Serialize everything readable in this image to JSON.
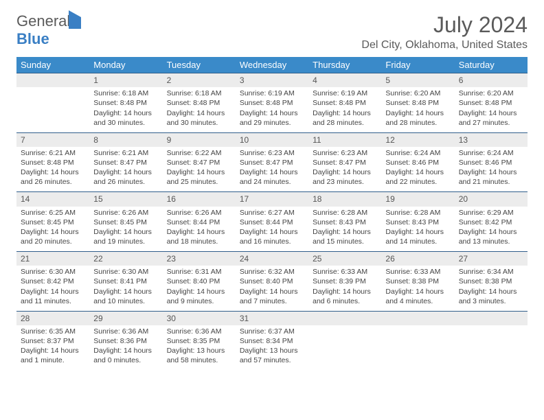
{
  "logo": {
    "line1": "General",
    "line2": "Blue"
  },
  "title": "July 2024",
  "location": "Del City, Oklahoma, United States",
  "colors": {
    "header_bg": "#3a8ac9",
    "header_text": "#ffffff",
    "daynum_bg": "#ececec",
    "row_border": "#2f5d8a",
    "body_text": "#444444",
    "logo_blue": "#3a7fc4",
    "logo_gray": "#5a5a5a"
  },
  "weekdays": [
    "Sunday",
    "Monday",
    "Tuesday",
    "Wednesday",
    "Thursday",
    "Friday",
    "Saturday"
  ],
  "weeks": [
    [
      null,
      {
        "n": "1",
        "sr": "Sunrise: 6:18 AM",
        "ss": "Sunset: 8:48 PM",
        "d1": "Daylight: 14 hours",
        "d2": "and 30 minutes."
      },
      {
        "n": "2",
        "sr": "Sunrise: 6:18 AM",
        "ss": "Sunset: 8:48 PM",
        "d1": "Daylight: 14 hours",
        "d2": "and 30 minutes."
      },
      {
        "n": "3",
        "sr": "Sunrise: 6:19 AM",
        "ss": "Sunset: 8:48 PM",
        "d1": "Daylight: 14 hours",
        "d2": "and 29 minutes."
      },
      {
        "n": "4",
        "sr": "Sunrise: 6:19 AM",
        "ss": "Sunset: 8:48 PM",
        "d1": "Daylight: 14 hours",
        "d2": "and 28 minutes."
      },
      {
        "n": "5",
        "sr": "Sunrise: 6:20 AM",
        "ss": "Sunset: 8:48 PM",
        "d1": "Daylight: 14 hours",
        "d2": "and 28 minutes."
      },
      {
        "n": "6",
        "sr": "Sunrise: 6:20 AM",
        "ss": "Sunset: 8:48 PM",
        "d1": "Daylight: 14 hours",
        "d2": "and 27 minutes."
      }
    ],
    [
      {
        "n": "7",
        "sr": "Sunrise: 6:21 AM",
        "ss": "Sunset: 8:48 PM",
        "d1": "Daylight: 14 hours",
        "d2": "and 26 minutes."
      },
      {
        "n": "8",
        "sr": "Sunrise: 6:21 AM",
        "ss": "Sunset: 8:47 PM",
        "d1": "Daylight: 14 hours",
        "d2": "and 26 minutes."
      },
      {
        "n": "9",
        "sr": "Sunrise: 6:22 AM",
        "ss": "Sunset: 8:47 PM",
        "d1": "Daylight: 14 hours",
        "d2": "and 25 minutes."
      },
      {
        "n": "10",
        "sr": "Sunrise: 6:23 AM",
        "ss": "Sunset: 8:47 PM",
        "d1": "Daylight: 14 hours",
        "d2": "and 24 minutes."
      },
      {
        "n": "11",
        "sr": "Sunrise: 6:23 AM",
        "ss": "Sunset: 8:47 PM",
        "d1": "Daylight: 14 hours",
        "d2": "and 23 minutes."
      },
      {
        "n": "12",
        "sr": "Sunrise: 6:24 AM",
        "ss": "Sunset: 8:46 PM",
        "d1": "Daylight: 14 hours",
        "d2": "and 22 minutes."
      },
      {
        "n": "13",
        "sr": "Sunrise: 6:24 AM",
        "ss": "Sunset: 8:46 PM",
        "d1": "Daylight: 14 hours",
        "d2": "and 21 minutes."
      }
    ],
    [
      {
        "n": "14",
        "sr": "Sunrise: 6:25 AM",
        "ss": "Sunset: 8:45 PM",
        "d1": "Daylight: 14 hours",
        "d2": "and 20 minutes."
      },
      {
        "n": "15",
        "sr": "Sunrise: 6:26 AM",
        "ss": "Sunset: 8:45 PM",
        "d1": "Daylight: 14 hours",
        "d2": "and 19 minutes."
      },
      {
        "n": "16",
        "sr": "Sunrise: 6:26 AM",
        "ss": "Sunset: 8:44 PM",
        "d1": "Daylight: 14 hours",
        "d2": "and 18 minutes."
      },
      {
        "n": "17",
        "sr": "Sunrise: 6:27 AM",
        "ss": "Sunset: 8:44 PM",
        "d1": "Daylight: 14 hours",
        "d2": "and 16 minutes."
      },
      {
        "n": "18",
        "sr": "Sunrise: 6:28 AM",
        "ss": "Sunset: 8:43 PM",
        "d1": "Daylight: 14 hours",
        "d2": "and 15 minutes."
      },
      {
        "n": "19",
        "sr": "Sunrise: 6:28 AM",
        "ss": "Sunset: 8:43 PM",
        "d1": "Daylight: 14 hours",
        "d2": "and 14 minutes."
      },
      {
        "n": "20",
        "sr": "Sunrise: 6:29 AM",
        "ss": "Sunset: 8:42 PM",
        "d1": "Daylight: 14 hours",
        "d2": "and 13 minutes."
      }
    ],
    [
      {
        "n": "21",
        "sr": "Sunrise: 6:30 AM",
        "ss": "Sunset: 8:42 PM",
        "d1": "Daylight: 14 hours",
        "d2": "and 11 minutes."
      },
      {
        "n": "22",
        "sr": "Sunrise: 6:30 AM",
        "ss": "Sunset: 8:41 PM",
        "d1": "Daylight: 14 hours",
        "d2": "and 10 minutes."
      },
      {
        "n": "23",
        "sr": "Sunrise: 6:31 AM",
        "ss": "Sunset: 8:40 PM",
        "d1": "Daylight: 14 hours",
        "d2": "and 9 minutes."
      },
      {
        "n": "24",
        "sr": "Sunrise: 6:32 AM",
        "ss": "Sunset: 8:40 PM",
        "d1": "Daylight: 14 hours",
        "d2": "and 7 minutes."
      },
      {
        "n": "25",
        "sr": "Sunrise: 6:33 AM",
        "ss": "Sunset: 8:39 PM",
        "d1": "Daylight: 14 hours",
        "d2": "and 6 minutes."
      },
      {
        "n": "26",
        "sr": "Sunrise: 6:33 AM",
        "ss": "Sunset: 8:38 PM",
        "d1": "Daylight: 14 hours",
        "d2": "and 4 minutes."
      },
      {
        "n": "27",
        "sr": "Sunrise: 6:34 AM",
        "ss": "Sunset: 8:38 PM",
        "d1": "Daylight: 14 hours",
        "d2": "and 3 minutes."
      }
    ],
    [
      {
        "n": "28",
        "sr": "Sunrise: 6:35 AM",
        "ss": "Sunset: 8:37 PM",
        "d1": "Daylight: 14 hours",
        "d2": "and 1 minute."
      },
      {
        "n": "29",
        "sr": "Sunrise: 6:36 AM",
        "ss": "Sunset: 8:36 PM",
        "d1": "Daylight: 14 hours",
        "d2": "and 0 minutes."
      },
      {
        "n": "30",
        "sr": "Sunrise: 6:36 AM",
        "ss": "Sunset: 8:35 PM",
        "d1": "Daylight: 13 hours",
        "d2": "and 58 minutes."
      },
      {
        "n": "31",
        "sr": "Sunrise: 6:37 AM",
        "ss": "Sunset: 8:34 PM",
        "d1": "Daylight: 13 hours",
        "d2": "and 57 minutes."
      },
      null,
      null,
      null
    ]
  ]
}
